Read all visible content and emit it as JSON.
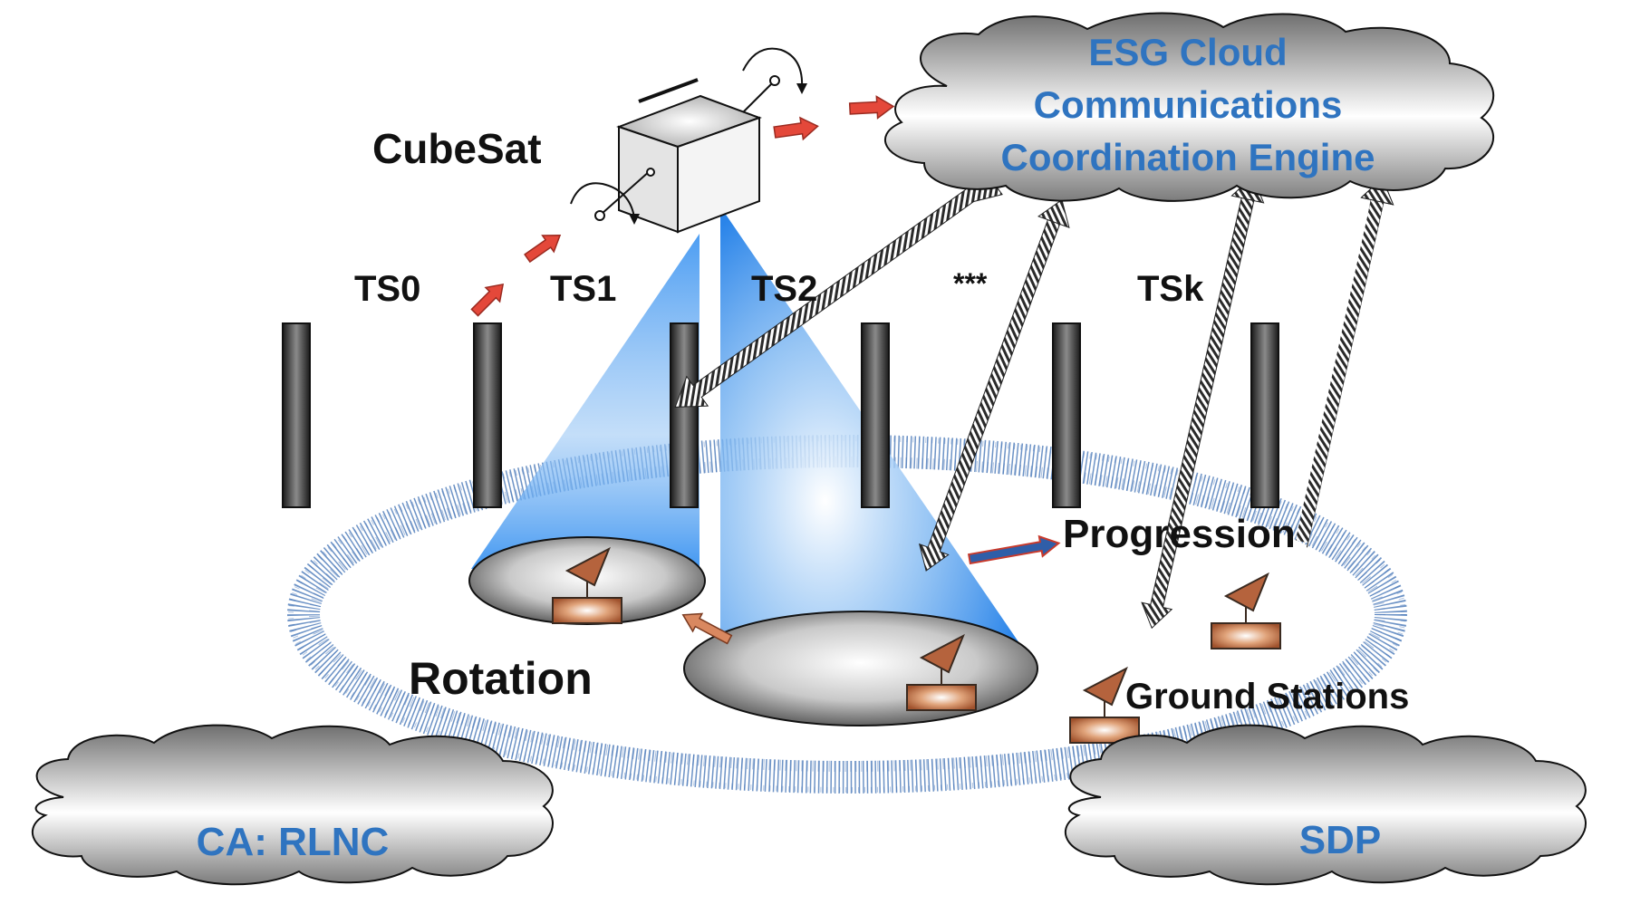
{
  "colors": {
    "cloud_text": "#2f74c0",
    "label_text": "#111111",
    "beam": "#2d8cf0",
    "dotted_ring": "#3d6fb3",
    "red_arrow": "#e4483a",
    "antenna": "#b5633d"
  },
  "labels": {
    "cubesat": "CubeSat",
    "rotation": "Rotation",
    "progression": "Progression",
    "ground_stations": "Ground Stations",
    "ellipsis": "***"
  },
  "time_slots": [
    "TS0",
    "TS1",
    "TS2",
    "TSk"
  ],
  "clouds": {
    "esg": {
      "line1": "ESG Cloud",
      "line2": "Communications",
      "line3": "Coordination Engine"
    },
    "ca": "CA: RLNC",
    "sdp": "SDP"
  },
  "icons": {
    "satellite": "cube-satellite-icon",
    "ground_station": "ground-station-antenna-icon",
    "cloud": "cloud-icon"
  }
}
